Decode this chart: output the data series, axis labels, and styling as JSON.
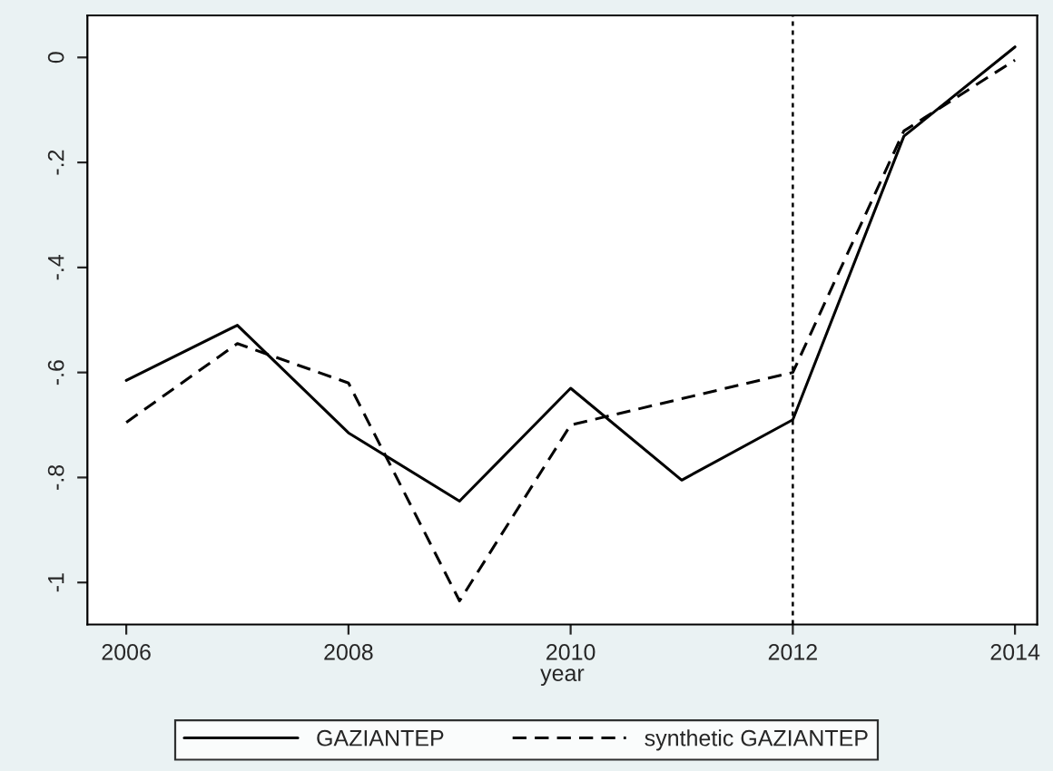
{
  "chart_data": {
    "type": "line",
    "xlabel": "year",
    "x": [
      2006,
      2007,
      2008,
      2009,
      2010,
      2011,
      2012,
      2013,
      2014
    ],
    "series": [
      {
        "name": "GAZIANTEP",
        "color": "#000000",
        "line_style": "solid",
        "values": [
          -0.615,
          -0.51,
          -0.715,
          -0.845,
          -0.63,
          -0.805,
          -0.69,
          -0.15,
          0.02
        ]
      },
      {
        "name": "synthetic GAZIANTEP",
        "color": "#000000",
        "line_style": "dashed",
        "values": [
          -0.695,
          -0.545,
          -0.62,
          -1.035,
          -0.7,
          -0.65,
          -0.6,
          -0.14,
          -0.005
        ]
      }
    ],
    "xlim": [
      2005.65,
      2014.2
    ],
    "xticks": [
      2006,
      2008,
      2010,
      2012,
      2014
    ],
    "ylim": [
      -1.08,
      0.08
    ],
    "yticks": [
      {
        "value": 0,
        "label": "0"
      },
      {
        "value": -0.2,
        "label": "-.2"
      },
      {
        "value": -0.4,
        "label": "-.4"
      },
      {
        "value": -0.6,
        "label": "-.6"
      },
      {
        "value": -0.8,
        "label": "-.8"
      },
      {
        "value": -1,
        "label": "-1"
      }
    ],
    "ref_lines": [
      {
        "axis": "x",
        "value": 2012,
        "color": "#000000",
        "line_style": "dotted"
      }
    ],
    "legend": "bottom",
    "grid": false,
    "marker": "none"
  }
}
